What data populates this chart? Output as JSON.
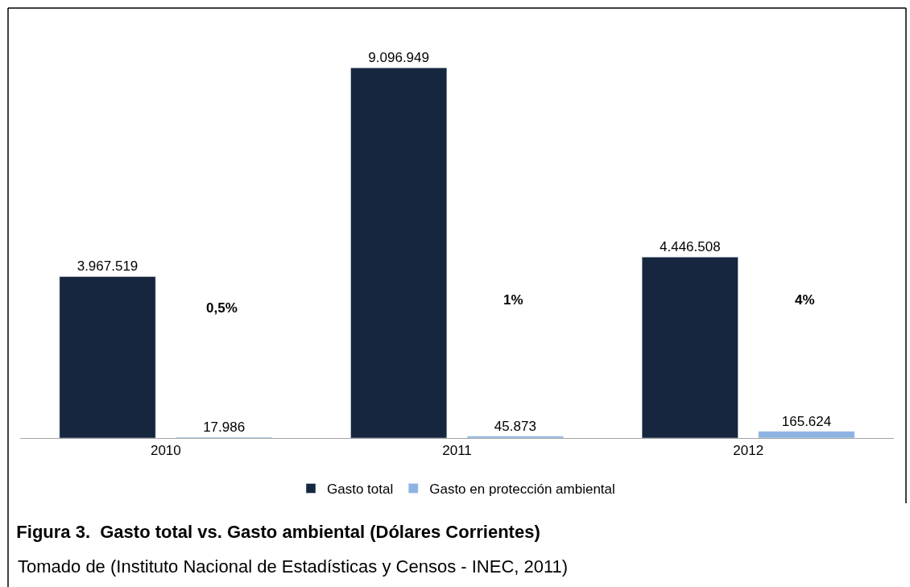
{
  "chart_data": {
    "type": "bar",
    "title": "Figura 3.  Gasto total vs. Gasto ambiental (Dólares Corrientes)",
    "categories": [
      "2010",
      "2011",
      "2012"
    ],
    "series": [
      {
        "name": "Gasto total",
        "color": "#16263f",
        "values": [
          3967519,
          9096949,
          4446508
        ],
        "value_labels": [
          "3.967.519",
          "9.096.949",
          "4.446.508"
        ]
      },
      {
        "name": "Gasto en protección ambiental",
        "color": "#8db3e2",
        "values": [
          17986,
          45873,
          165624
        ],
        "value_labels": [
          "17.986",
          "45.873",
          "165.624"
        ]
      }
    ],
    "annotations": [
      "0,5%",
      "1%",
      "4%",
      "Tomado de (Instituto Nacional de Estadísticas y Censos - INEC, 2011)"
    ],
    "legend": "bottom"
  }
}
